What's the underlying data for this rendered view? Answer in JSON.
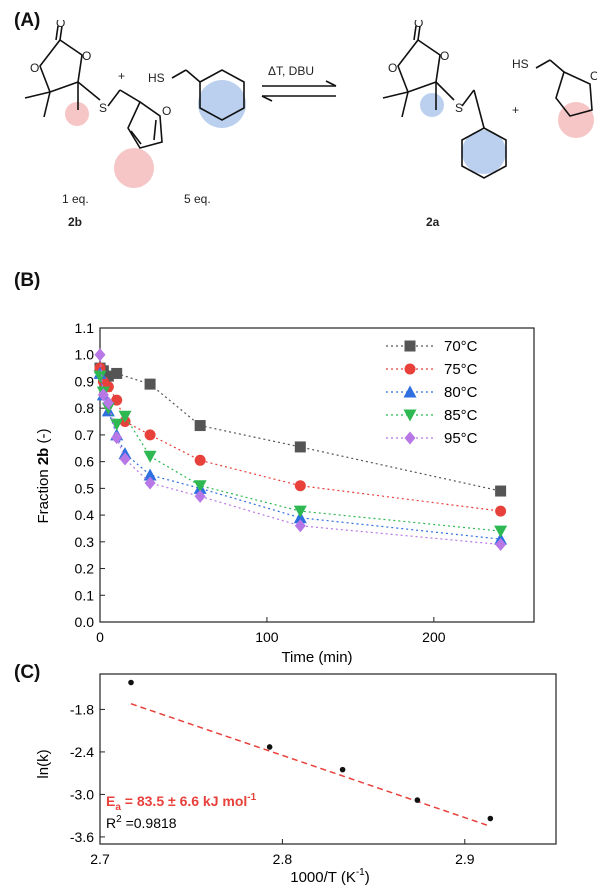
{
  "panels": {
    "a": "(A)",
    "b": "(B)",
    "c": "(C)"
  },
  "scheme": {
    "hs_label_1": "HS",
    "hs_label_2": "HS",
    "plus_1": "+",
    "plus_2": "+",
    "ring_o1": "O",
    "ring_o2": "O",
    "ring_o3": "O",
    "ring_o4": "O",
    "ring_o5": "O",
    "ring_o6": "O",
    "s_1": "S",
    "s_2": "S",
    "furan_o1": "O",
    "furan_o2": "O",
    "arrow_label": "ΔT, DBU",
    "eq_1": "1 eq.",
    "eq_2": "5 eq.",
    "compound_1": "2b",
    "compound_2": "2a",
    "highlight_red": "#f4b6b6",
    "highlight_blue": "#a9c4ea"
  },
  "chart_data": [
    {
      "type": "scatter",
      "xlabel": "Time (min)",
      "ylabel_prefix": "Fraction ",
      "ylabel_bold": "2b",
      "ylabel_suffix": " (-)",
      "xlim": [
        0,
        260
      ],
      "ylim": [
        0.0,
        1.1
      ],
      "xticks": [
        0,
        100,
        200
      ],
      "yticks": [
        0.0,
        0.1,
        0.2,
        0.3,
        0.4,
        0.5,
        0.6,
        0.7,
        0.8,
        0.9,
        1.0,
        1.1
      ],
      "legend_position": "top-right",
      "series": [
        {
          "name": "70°C",
          "color": "#555555",
          "marker": "square",
          "x": [
            0,
            2,
            5,
            10,
            30,
            60,
            120,
            240
          ],
          "y": [
            0.95,
            0.94,
            0.92,
            0.93,
            0.89,
            0.735,
            0.655,
            0.49
          ]
        },
        {
          "name": "75°C",
          "color": "#e8413c",
          "marker": "circle",
          "x": [
            0,
            2,
            5,
            10,
            15,
            30,
            60,
            120,
            240
          ],
          "y": [
            0.95,
            0.9,
            0.88,
            0.83,
            0.75,
            0.7,
            0.605,
            0.51,
            0.415
          ]
        },
        {
          "name": "80°C",
          "color": "#2f6fe0",
          "marker": "triangle-up",
          "x": [
            0,
            2,
            5,
            10,
            15,
            30,
            60,
            120,
            240
          ],
          "y": [
            0.93,
            0.85,
            0.79,
            0.7,
            0.63,
            0.55,
            0.5,
            0.39,
            0.31
          ]
        },
        {
          "name": "85°C",
          "color": "#2db852",
          "marker": "triangle-down",
          "x": [
            0,
            2,
            5,
            10,
            15,
            30,
            60,
            120,
            240
          ],
          "y": [
            0.92,
            0.86,
            0.8,
            0.74,
            0.77,
            0.62,
            0.51,
            0.415,
            0.34
          ]
        },
        {
          "name": "95°C",
          "color": "#b777e6",
          "marker": "diamond",
          "x": [
            0,
            2,
            5,
            10,
            15,
            30,
            60,
            120,
            240
          ],
          "y": [
            1.0,
            0.85,
            0.82,
            0.69,
            0.61,
            0.52,
            0.47,
            0.36,
            0.29
          ]
        }
      ]
    },
    {
      "type": "scatter",
      "xlabel": "1000/T (K-1)",
      "xlabel_main": "1000/T (K",
      "xlabel_sup": "-1",
      "xlabel_end": ")",
      "ylabel": "ln(k)",
      "xlim": [
        2.7,
        2.95
      ],
      "ylim": [
        -3.7,
        -1.3
      ],
      "xticks": [
        2.7,
        2.8,
        2.9
      ],
      "ytick_labels": [
        "-1.8",
        "-2.4",
        "-3.0",
        "-3.6"
      ],
      "yticks": [
        -1.8,
        -2.4,
        -3.0,
        -3.6
      ],
      "points": {
        "x": [
          2.717,
          2.793,
          2.833,
          2.874,
          2.914
        ],
        "y": [
          -1.42,
          -2.33,
          -2.65,
          -3.08,
          -3.34
        ]
      },
      "fit": {
        "x": [
          2.717,
          2.914
        ],
        "y": [
          -1.72,
          -3.45
        ],
        "color": "#e8413c"
      },
      "annotation_ea_main": "E",
      "annotation_ea_sub": "a",
      "annotation_ea_rest": " = 83.5 ± 6.6 kJ mol",
      "annotation_ea_sup": "-1",
      "annotation_r2_main": "R",
      "annotation_r2_sup": "2",
      "annotation_r2_rest": " =0.9818"
    }
  ]
}
